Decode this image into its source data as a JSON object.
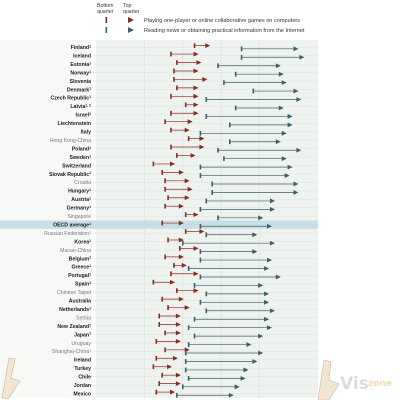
{
  "legend": {
    "bottom_label_1": "Bottom",
    "bottom_label_2": "quarter",
    "top_label_1": "Top",
    "top_label_2": "quarter",
    "item_games": "Playing one-player or online collaborative games on computers",
    "item_news": "Reading news or obtaining practical information from the Internet"
  },
  "watermark": {
    "text_vis": "Vis",
    "text_zone": "zone"
  },
  "colors": {
    "games": "#8b2a1f",
    "news": "#3d5f66",
    "grid_dot": "#cfcfcf",
    "band": "#eef3ef",
    "highlight": "#c9dfe8"
  },
  "chart_data": {
    "type": "dumbbell",
    "title": "",
    "xlabel": "",
    "ylabel": "",
    "x_domain": [
      0,
      1
    ],
    "series": [
      {
        "name": "Playing one-player or online collaborative games on computers"
      },
      {
        "name": "Reading news or obtaining practical information from the Internet"
      }
    ],
    "rows": [
      {
        "country": "Finland",
        "sup": "1",
        "games": [
          0.58,
          0.62
        ],
        "news": [
          0.74,
          0.92
        ]
      },
      {
        "country": "Iceland",
        "sup": "",
        "games": [
          0.5,
          0.58
        ],
        "news": [
          0.74,
          0.94
        ]
      },
      {
        "country": "Estonia",
        "sup": "1",
        "games": [
          0.52,
          0.59
        ],
        "news": [
          0.66,
          0.86
        ]
      },
      {
        "country": "Norway",
        "sup": "1",
        "games": [
          0.51,
          0.58
        ],
        "news": [
          0.72,
          0.87
        ]
      },
      {
        "country": "Slovenia",
        "sup": "",
        "games": [
          0.51,
          0.61
        ],
        "news": [
          0.68,
          0.88
        ]
      },
      {
        "country": "Denmark",
        "sup": "1",
        "games": [
          0.52,
          0.58
        ],
        "news": [
          0.78,
          0.92
        ]
      },
      {
        "country": "Czech Republic",
        "sup": "1",
        "games": [
          0.5,
          0.58
        ],
        "news": [
          0.62,
          0.93
        ]
      },
      {
        "country": "Latvia",
        "sup": "1, 2",
        "games": [
          0.55,
          0.58
        ],
        "news": [
          0.72,
          0.87
        ]
      },
      {
        "country": "Israel",
        "sup": "1",
        "games": [
          0.5,
          0.58
        ],
        "news": [
          0.62,
          0.9
        ]
      },
      {
        "country": "Liechtenstein",
        "sup": "",
        "games": [
          0.48,
          0.56
        ],
        "news": [
          0.7,
          0.9
        ]
      },
      {
        "country": "Italy",
        "sup": "",
        "games": [
          0.5,
          0.55
        ],
        "news": [
          0.6,
          0.88
        ]
      },
      {
        "country": "Hong Kong-China",
        "sup": "",
        "games": [
          0.56,
          0.6
        ],
        "news": [
          0.7,
          0.86
        ]
      },
      {
        "country": "Poland",
        "sup": "1",
        "games": [
          0.5,
          0.6
        ],
        "news": [
          0.66,
          0.93
        ]
      },
      {
        "country": "Sweden",
        "sup": "1",
        "games": [
          0.52,
          0.57
        ],
        "news": [
          0.68,
          0.88
        ]
      },
      {
        "country": "Switzerland",
        "sup": "",
        "games": [
          0.44,
          0.5
        ],
        "news": [
          0.6,
          0.9
        ]
      },
      {
        "country": "Slovak Republic",
        "sup": "1",
        "games": [
          0.47,
          0.53
        ],
        "news": [
          0.6,
          0.89
        ]
      },
      {
        "country": "Croatia",
        "sup": "",
        "games": [
          0.48,
          0.55
        ],
        "news": [
          0.64,
          0.92
        ]
      },
      {
        "country": "Hungary",
        "sup": "1",
        "games": [
          0.48,
          0.56
        ],
        "news": [
          0.64,
          0.92
        ]
      },
      {
        "country": "Austria",
        "sup": "1",
        "games": [
          0.49,
          0.55
        ],
        "news": [
          0.62,
          0.84
        ]
      },
      {
        "country": "Germany",
        "sup": "1",
        "games": [
          0.48,
          0.53
        ],
        "news": [
          0.6,
          0.84
        ]
      },
      {
        "country": "Singapore",
        "sup": "",
        "games": [
          0.55,
          0.58
        ],
        "news": [
          0.66,
          0.8
        ]
      },
      {
        "country": "OECD average",
        "sup": "1",
        "games": [
          0.47,
          0.53
        ],
        "news": [
          0.6,
          0.83
        ]
      },
      {
        "country": "Russian Federation",
        "sup": "1",
        "games": [
          0.55,
          0.6
        ],
        "news": [
          0.62,
          0.78
        ]
      },
      {
        "country": "Korea",
        "sup": "1",
        "games": [
          0.49,
          0.53
        ],
        "news": [
          0.54,
          0.84
        ]
      },
      {
        "country": "Macao-China",
        "sup": "",
        "games": [
          0.53,
          0.58
        ],
        "news": [
          0.6,
          0.78
        ]
      },
      {
        "country": "Belgium",
        "sup": "1",
        "games": [
          0.48,
          0.53
        ],
        "news": [
          0.6,
          0.83
        ]
      },
      {
        "country": "Greece",
        "sup": "1",
        "games": [
          0.51,
          0.54
        ],
        "news": [
          0.56,
          0.82
        ]
      },
      {
        "country": "Portugal",
        "sup": "1",
        "games": [
          0.5,
          0.58
        ],
        "news": [
          0.6,
          0.86
        ]
      },
      {
        "country": "Spain",
        "sup": "1",
        "games": [
          0.44,
          0.5
        ],
        "news": [
          0.58,
          0.8
        ]
      },
      {
        "country": "Chinese Taipei",
        "sup": "",
        "games": [
          0.52,
          0.58
        ],
        "news": [
          0.62,
          0.82
        ]
      },
      {
        "country": "Australia",
        "sup": "",
        "games": [
          0.47,
          0.53
        ],
        "news": [
          0.6,
          0.82
        ]
      },
      {
        "country": "Netherlands",
        "sup": "1",
        "games": [
          0.49,
          0.55
        ],
        "news": [
          0.62,
          0.84
        ]
      },
      {
        "country": "Serbia",
        "sup": "",
        "games": [
          0.46,
          0.52
        ],
        "news": [
          0.58,
          0.82
        ]
      },
      {
        "country": "New Zealand",
        "sup": "1",
        "games": [
          0.46,
          0.52
        ],
        "news": [
          0.56,
          0.83
        ]
      },
      {
        "country": "Japan",
        "sup": "1",
        "games": [
          0.48,
          0.52
        ],
        "news": [
          0.58,
          0.8
        ]
      },
      {
        "country": "Uruguay",
        "sup": "",
        "games": [
          0.45,
          0.52
        ],
        "news": [
          0.56,
          0.76
        ]
      },
      {
        "country": "Shanghai-China",
        "sup": "1",
        "games": [
          0.48,
          0.55
        ],
        "news": [
          0.55,
          0.8
        ]
      },
      {
        "country": "Ireland",
        "sup": "",
        "games": [
          0.45,
          0.51
        ],
        "news": [
          0.55,
          0.78
        ]
      },
      {
        "country": "Turkey",
        "sup": "",
        "games": [
          0.44,
          0.49
        ],
        "news": [
          0.55,
          0.75
        ]
      },
      {
        "country": "Chile",
        "sup": "",
        "games": [
          0.47,
          0.52
        ],
        "news": [
          0.56,
          0.74
        ]
      },
      {
        "country": "Jordan",
        "sup": "",
        "games": [
          0.46,
          0.52
        ],
        "news": [
          0.54,
          0.72
        ]
      },
      {
        "country": "Mexico",
        "sup": "",
        "games": [
          0.45,
          0.5
        ],
        "news": [
          0.52,
          0.7
        ]
      }
    ],
    "partner_countries": [
      "Hong Kong-China",
      "Croatia",
      "Singapore",
      "Russian Federation",
      "Macao-China",
      "Chinese Taipei",
      "Serbia",
      "Uruguay",
      "Shanghai-China"
    ],
    "highlight_row": "OECD average",
    "grid": true
  }
}
